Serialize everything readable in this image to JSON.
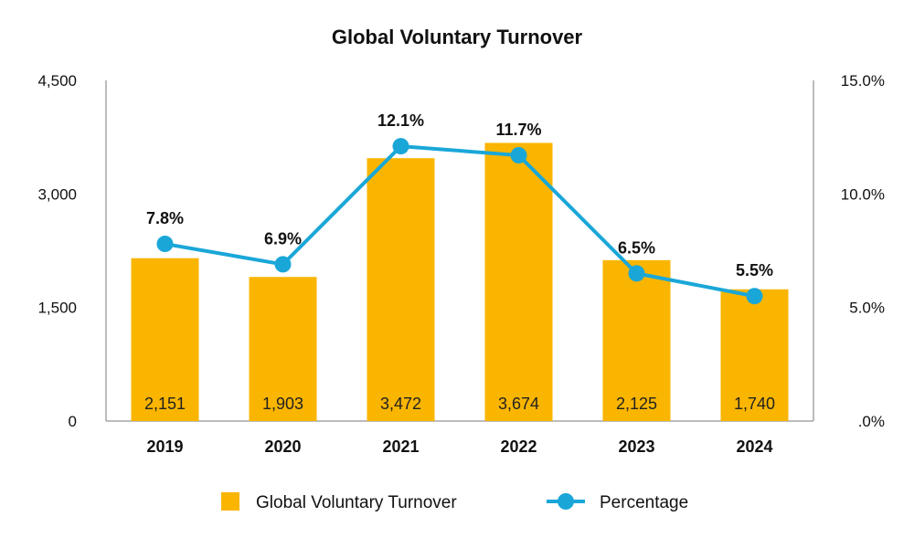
{
  "chart_data": {
    "type": "bar",
    "title": "Global Voluntary Turnover",
    "categories": [
      "2019",
      "2020",
      "2021",
      "2022",
      "2023",
      "2024"
    ],
    "series": [
      {
        "name": "Global Voluntary Turnover",
        "type": "bar",
        "axis": "left",
        "values": [
          2151,
          1903,
          3472,
          3674,
          2125,
          1740
        ],
        "labels": [
          "2,151",
          "1,903",
          "3,472",
          "3,674",
          "2,125",
          "1,740"
        ],
        "color": "#F9B500"
      },
      {
        "name": "Percentage",
        "type": "line",
        "axis": "right",
        "values": [
          7.8,
          6.9,
          12.1,
          11.7,
          6.5,
          5.5
        ],
        "labels": [
          "7.8%",
          "6.9%",
          "12.1%",
          "11.7%",
          "6.5%",
          "5.5%"
        ],
        "color": "#1AA7D8"
      }
    ],
    "y_left": {
      "range": [
        0,
        4500
      ],
      "ticks": [
        0,
        1500,
        3000,
        4500
      ],
      "tick_labels": [
        "0",
        "1,500",
        "3,000",
        "4,500"
      ]
    },
    "y_right": {
      "range": [
        0,
        15
      ],
      "ticks": [
        0,
        5,
        10,
        15
      ],
      "tick_labels": [
        ".0%",
        "5.0%",
        "10.0%",
        "15.0%"
      ]
    },
    "grid": false,
    "legend": "bottom"
  }
}
